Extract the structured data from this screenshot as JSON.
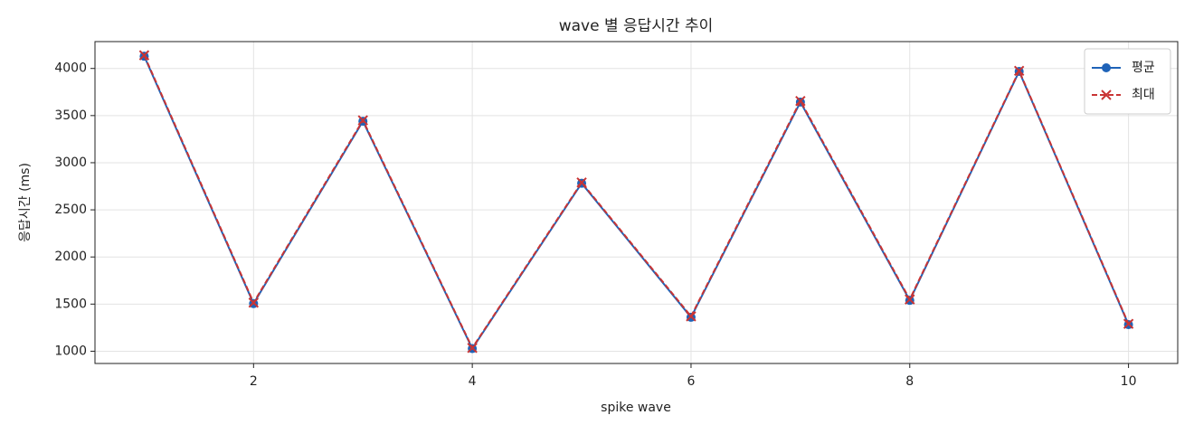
{
  "chart_data": {
    "type": "line",
    "title": "wave 별 응답시간 추이",
    "xlabel": "spike wave",
    "ylabel": "응답시간 (ms)",
    "x": [
      1,
      2,
      3,
      4,
      5,
      6,
      7,
      8,
      9,
      10
    ],
    "series": [
      {
        "name": "평균",
        "color": "#1f63b8",
        "marker": "o",
        "linestyle": "solid",
        "values": [
          4130,
          1505,
          3440,
          1028,
          2782,
          1360,
          3643,
          1540,
          3968,
          1282
        ]
      },
      {
        "name": "최대",
        "color": "#c93434",
        "marker": "x",
        "linestyle": "dashed",
        "values": [
          4140,
          1515,
          3450,
          1035,
          2790,
          1370,
          3655,
          1550,
          3975,
          1290
        ]
      }
    ],
    "xlim": [
      0.55,
      10.45
    ],
    "ylim": [
      870,
      4285
    ],
    "xticks": [
      2,
      4,
      6,
      8,
      10
    ],
    "yticks": [
      1000,
      1500,
      2000,
      2500,
      3000,
      3500,
      4000
    ],
    "grid": true,
    "legend": "upper right"
  }
}
